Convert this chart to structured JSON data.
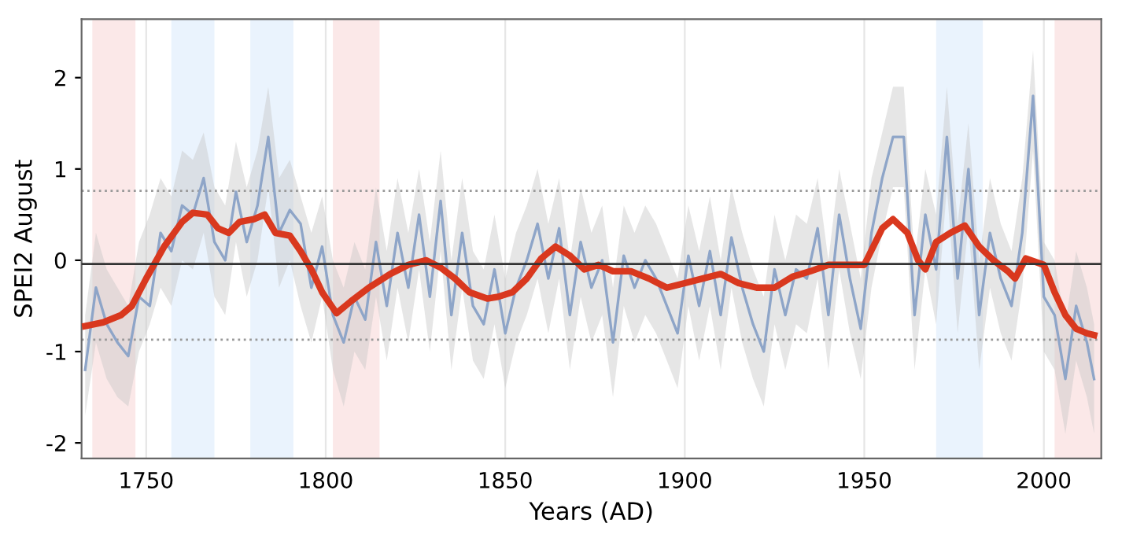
{
  "chart_data": {
    "type": "line",
    "xlabel": "Years (AD)",
    "ylabel": "SPEI2 August",
    "xlim": [
      1732,
      2016
    ],
    "ylim": [
      -2.17,
      2.64
    ],
    "xticks": [
      1750,
      1800,
      1850,
      1900,
      1950,
      2000
    ],
    "yticks": [
      -2,
      -1,
      0,
      1,
      2
    ],
    "grid": "x",
    "line_style": "solid",
    "bands": [
      {
        "axis": "x",
        "from": 1735,
        "to": 1747,
        "color": "#fbe8e8"
      },
      {
        "axis": "x",
        "from": 1757,
        "to": 1769,
        "color": "#eaf3fd"
      },
      {
        "axis": "x",
        "from": 1779,
        "to": 1791,
        "color": "#eaf3fd"
      },
      {
        "axis": "x",
        "from": 1802,
        "to": 1815,
        "color": "#fbe8e8"
      },
      {
        "axis": "x",
        "from": 1970,
        "to": 1983,
        "color": "#eaf3fd"
      },
      {
        "axis": "x",
        "from": 2003,
        "to": 2016,
        "color": "#fbe8e8"
      }
    ],
    "ref_lines": [
      {
        "axis": "y",
        "value": 0.76,
        "color": "#999999",
        "line_style": "dotted"
      },
      {
        "axis": "y",
        "value": -0.87,
        "color": "#999999",
        "line_style": "dotted"
      },
      {
        "axis": "y",
        "value": -0.04,
        "color": "#333333",
        "line_style": "solid"
      }
    ],
    "series": [
      {
        "color": "#8ea5c8",
        "x": [
          1733,
          1736,
          1739,
          1742,
          1745,
          1748,
          1751,
          1754,
          1757,
          1760,
          1763,
          1766,
          1769,
          1772,
          1775,
          1778,
          1781,
          1784,
          1787,
          1790,
          1793,
          1796,
          1799,
          1802,
          1805,
          1808,
          1811,
          1814,
          1817,
          1820,
          1823,
          1826,
          1829,
          1832,
          1835,
          1838,
          1841,
          1844,
          1847,
          1850,
          1853,
          1856,
          1859,
          1862,
          1865,
          1868,
          1871,
          1874,
          1877,
          1880,
          1883,
          1886,
          1889,
          1892,
          1895,
          1898,
          1901,
          1904,
          1907,
          1910,
          1913,
          1916,
          1919,
          1922,
          1925,
          1928,
          1931,
          1934,
          1937,
          1940,
          1943,
          1946,
          1949,
          1952,
          1955,
          1958,
          1961,
          1964,
          1967,
          1970,
          1973,
          1976,
          1979,
          1982,
          1985,
          1988,
          1991,
          1994,
          1997,
          2000,
          2003,
          2006,
          2009,
          2012,
          2014
        ],
        "values": [
          -1.2,
          -0.3,
          -0.7,
          -0.9,
          -1.05,
          -0.4,
          -0.5,
          0.3,
          0.1,
          0.6,
          0.5,
          0.9,
          0.2,
          0.0,
          0.75,
          0.2,
          0.6,
          1.35,
          0.3,
          0.55,
          0.4,
          -0.3,
          0.15,
          -0.6,
          -0.9,
          -0.4,
          -0.65,
          0.2,
          -0.5,
          0.3,
          -0.3,
          0.5,
          -0.4,
          0.65,
          -0.6,
          0.3,
          -0.5,
          -0.7,
          -0.1,
          -0.8,
          -0.3,
          0.0,
          0.4,
          -0.2,
          0.35,
          -0.6,
          0.2,
          -0.3,
          0.0,
          -0.9,
          0.05,
          -0.3,
          0.0,
          -0.2,
          -0.5,
          -0.8,
          0.05,
          -0.5,
          0.1,
          -0.6,
          0.25,
          -0.3,
          -0.7,
          -1.0,
          -0.1,
          -0.6,
          -0.1,
          -0.2,
          0.35,
          -0.6,
          0.5,
          -0.2,
          -0.75,
          0.3,
          0.9,
          1.35,
          1.35,
          -0.6,
          0.5,
          -0.1,
          1.35,
          -0.2,
          1.0,
          -0.6,
          0.3,
          -0.2,
          -0.5,
          0.3,
          1.8,
          -0.4,
          -0.6,
          -1.3,
          -0.5,
          -0.9,
          -1.3
        ],
        "lower": [
          -1.7,
          -0.9,
          -1.3,
          -1.5,
          -1.6,
          -1.0,
          -0.7,
          -0.3,
          -0.5,
          0.0,
          -0.1,
          0.3,
          -0.4,
          -0.6,
          0.2,
          -0.4,
          0.0,
          0.8,
          -0.3,
          0.0,
          -0.5,
          -0.9,
          -0.4,
          -1.2,
          -1.6,
          -1.0,
          -1.2,
          -0.4,
          -1.1,
          -0.3,
          -0.9,
          -0.1,
          -1.0,
          0.1,
          -1.2,
          -0.3,
          -1.1,
          -1.3,
          -0.7,
          -1.4,
          -0.9,
          -0.6,
          -0.2,
          -0.8,
          -0.2,
          -1.2,
          -0.4,
          -0.9,
          -0.6,
          -1.5,
          -0.5,
          -0.9,
          -0.6,
          -0.8,
          -1.1,
          -1.4,
          -0.5,
          -1.1,
          -0.5,
          -1.2,
          -0.3,
          -0.9,
          -1.3,
          -1.6,
          -0.7,
          -1.2,
          -0.7,
          -0.8,
          -0.2,
          -1.2,
          -0.1,
          -0.8,
          -1.3,
          -0.3,
          0.3,
          0.8,
          0.8,
          -1.2,
          -0.1,
          -0.7,
          0.8,
          -0.8,
          0.4,
          -1.2,
          -0.3,
          -0.8,
          -1.1,
          -0.3,
          1.2,
          -1.0,
          -1.2,
          -1.9,
          -1.1,
          -1.5,
          -1.9
        ],
        "upper": [
          -0.6,
          0.3,
          -0.1,
          -0.3,
          -0.5,
          0.2,
          0.5,
          0.9,
          0.7,
          1.2,
          1.1,
          1.4,
          0.8,
          0.6,
          1.3,
          0.8,
          1.2,
          1.9,
          0.9,
          1.1,
          0.7,
          0.3,
          0.7,
          0.0,
          -0.3,
          0.2,
          -0.1,
          0.8,
          0.1,
          0.9,
          0.3,
          1.0,
          0.2,
          1.2,
          0.0,
          0.9,
          0.1,
          -0.1,
          0.5,
          -0.2,
          0.3,
          0.6,
          1.0,
          0.4,
          0.9,
          0.0,
          0.8,
          0.3,
          0.6,
          -0.3,
          0.6,
          0.3,
          0.6,
          0.4,
          0.1,
          -0.2,
          0.6,
          0.1,
          0.7,
          0.0,
          0.8,
          0.3,
          -0.1,
          -0.4,
          0.5,
          0.0,
          0.5,
          0.4,
          0.9,
          0.0,
          1.0,
          0.4,
          -0.2,
          0.9,
          1.4,
          1.9,
          1.9,
          0.0,
          1.0,
          0.5,
          1.9,
          0.4,
          1.5,
          0.0,
          0.9,
          0.4,
          0.1,
          0.9,
          2.3,
          0.2,
          0.0,
          -0.7,
          0.1,
          -0.3,
          -0.7
        ]
      },
      {
        "color": "#d9381e",
        "x": [
          1733,
          1738,
          1743,
          1746,
          1750,
          1755,
          1760,
          1763,
          1767,
          1770,
          1773,
          1776,
          1780,
          1783,
          1786,
          1790,
          1793,
          1796,
          1799,
          1803,
          1807,
          1812,
          1818,
          1823,
          1828,
          1832,
          1836,
          1840,
          1845,
          1848,
          1852,
          1856,
          1860,
          1864,
          1868,
          1872,
          1876,
          1880,
          1885,
          1890,
          1895,
          1900,
          1905,
          1910,
          1915,
          1920,
          1925,
          1930,
          1935,
          1940,
          1945,
          1950,
          1955,
          1958,
          1962,
          1965,
          1967,
          1970,
          1974,
          1978,
          1982,
          1986,
          1990,
          1992,
          1995,
          2000,
          2003,
          2006,
          2009,
          2012,
          2014
        ],
        "values": [
          -0.72,
          -0.68,
          -0.6,
          -0.5,
          -0.2,
          0.15,
          0.42,
          0.52,
          0.5,
          0.35,
          0.3,
          0.42,
          0.45,
          0.5,
          0.3,
          0.27,
          0.1,
          -0.1,
          -0.35,
          -0.58,
          -0.45,
          -0.3,
          -0.15,
          -0.05,
          0.0,
          -0.08,
          -0.2,
          -0.35,
          -0.42,
          -0.4,
          -0.35,
          -0.2,
          0.02,
          0.15,
          0.05,
          -0.1,
          -0.05,
          -0.12,
          -0.12,
          -0.2,
          -0.3,
          -0.25,
          -0.2,
          -0.15,
          -0.25,
          -0.3,
          -0.3,
          -0.18,
          -0.12,
          -0.05,
          -0.05,
          -0.05,
          0.35,
          0.45,
          0.3,
          0.0,
          -0.1,
          0.2,
          0.3,
          0.38,
          0.15,
          0.0,
          -0.12,
          -0.2,
          0.02,
          -0.05,
          -0.35,
          -0.6,
          -0.75,
          -0.8,
          -0.82
        ]
      }
    ]
  }
}
